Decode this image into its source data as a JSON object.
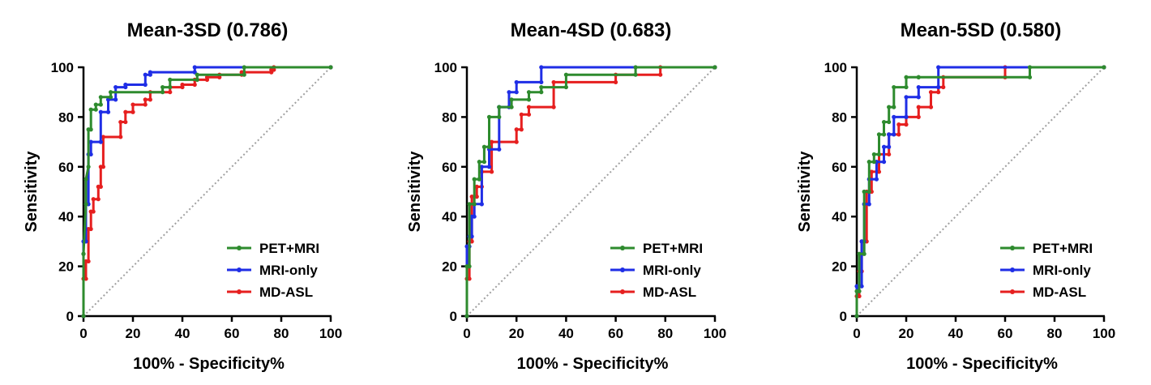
{
  "chart_data": [
    {
      "type": "line",
      "title": "Mean-3SD (0.786)",
      "xlabel": "100%  - Specificity%",
      "ylabel": "Sensitivity",
      "xlim": [
        0,
        100
      ],
      "ylim": [
        0,
        100
      ],
      "xticks": [
        "0",
        "20",
        "40",
        "60",
        "80",
        "100"
      ],
      "yticks": [
        "0",
        "20",
        "40",
        "60",
        "80",
        "100"
      ],
      "legend_position": "bottom-right",
      "series": [
        {
          "name": "PET+MRI",
          "color": "#2e8b2e",
          "x": [
            0,
            0,
            0,
            1,
            1,
            2,
            2,
            3,
            3,
            5,
            5,
            7,
            7,
            11,
            11,
            32,
            32,
            35,
            35,
            46,
            46,
            65,
            65,
            100
          ],
          "y": [
            0,
            25,
            25,
            45,
            55,
            60,
            75,
            75,
            83,
            83,
            85,
            85,
            88,
            88,
            90,
            90,
            92,
            92,
            95,
            95,
            97,
            97,
            100,
            100
          ]
        },
        {
          "name": "MRI-only",
          "color": "#1f2ee6",
          "x": [
            0,
            0,
            1,
            1,
            2,
            2,
            3,
            3,
            7,
            7,
            10,
            10,
            13,
            13,
            17,
            17,
            25,
            25,
            27,
            27,
            45,
            45,
            100
          ],
          "y": [
            0,
            30,
            30,
            45,
            45,
            65,
            65,
            70,
            70,
            82,
            82,
            87,
            87,
            92,
            92,
            93,
            93,
            97,
            97,
            98,
            98,
            100,
            100
          ]
        },
        {
          "name": "MD-ASL",
          "color": "#e61f1f",
          "x": [
            0,
            0,
            1,
            1,
            2,
            2,
            3,
            3,
            4,
            4,
            6,
            6,
            7,
            7,
            8,
            8,
            15,
            15,
            17,
            17,
            20,
            20,
            25,
            25,
            27,
            27,
            35,
            35,
            40,
            40,
            45,
            45,
            50,
            50,
            55,
            55,
            64,
            64,
            76,
            76,
            77,
            77,
            100
          ],
          "y": [
            0,
            15,
            15,
            22,
            22,
            35,
            35,
            42,
            42,
            47,
            47,
            52,
            52,
            60,
            60,
            72,
            72,
            78,
            78,
            82,
            82,
            85,
            85,
            87,
            87,
            90,
            90,
            92,
            92,
            93,
            93,
            95,
            95,
            96,
            96,
            97,
            97,
            98,
            98,
            99,
            99,
            100,
            100
          ]
        }
      ]
    },
    {
      "type": "line",
      "title": "Mean-4SD (0.683)",
      "xlabel": "100%  - Specificity%",
      "ylabel": "Sensitivity",
      "xlim": [
        0,
        100
      ],
      "ylim": [
        0,
        100
      ],
      "xticks": [
        "0",
        "20",
        "40",
        "60",
        "80",
        "100"
      ],
      "yticks": [
        "0",
        "20",
        "40",
        "60",
        "80",
        "100"
      ],
      "legend_position": "bottom-right",
      "series": [
        {
          "name": "PET+MRI",
          "color": "#2e8b2e",
          "x": [
            0,
            0,
            1,
            1,
            3,
            3,
            5,
            5,
            7,
            7,
            9,
            9,
            13,
            13,
            18,
            18,
            25,
            25,
            30,
            30,
            40,
            40,
            68,
            68,
            100
          ],
          "y": [
            0,
            20,
            20,
            45,
            45,
            55,
            55,
            62,
            62,
            68,
            68,
            80,
            80,
            84,
            84,
            87,
            87,
            90,
            90,
            92,
            92,
            97,
            97,
            100,
            100
          ]
        },
        {
          "name": "MRI-only",
          "color": "#1f2ee6",
          "x": [
            0,
            0,
            1,
            1,
            2,
            2,
            3,
            3,
            6,
            6,
            9,
            9,
            13,
            13,
            17,
            17,
            20,
            20,
            30,
            30,
            100
          ],
          "y": [
            0,
            28,
            28,
            32,
            32,
            40,
            40,
            45,
            45,
            60,
            60,
            67,
            67,
            84,
            84,
            90,
            90,
            94,
            94,
            100,
            100
          ]
        },
        {
          "name": "MD-ASL",
          "color": "#e61f1f",
          "x": [
            0,
            0,
            1,
            1,
            2,
            2,
            4,
            4,
            6,
            6,
            10,
            10,
            20,
            20,
            22,
            22,
            25,
            25,
            35,
            35,
            60,
            60,
            78,
            78,
            100
          ],
          "y": [
            0,
            15,
            15,
            30,
            30,
            48,
            48,
            52,
            52,
            58,
            58,
            70,
            70,
            75,
            75,
            81,
            81,
            84,
            84,
            94,
            94,
            97,
            97,
            100,
            100
          ]
        }
      ]
    },
    {
      "type": "line",
      "title": "Mean-5SD (0.580)",
      "xlabel": "100%  - Specificity%",
      "ylabel": "Sensitivity",
      "xlim": [
        0,
        100
      ],
      "ylim": [
        0,
        100
      ],
      "xticks": [
        "0",
        "20",
        "40",
        "60",
        "80",
        "100"
      ],
      "yticks": [
        "0",
        "20",
        "40",
        "60",
        "80",
        "100"
      ],
      "legend_position": "bottom-right",
      "series": [
        {
          "name": "PET+MRI",
          "color": "#2e8b2e",
          "x": [
            0,
            0,
            1,
            1,
            3,
            3,
            5,
            5,
            7,
            7,
            9,
            9,
            11,
            11,
            13,
            13,
            15,
            15,
            20,
            20,
            25,
            25,
            70,
            70,
            100
          ],
          "y": [
            0,
            10,
            10,
            25,
            25,
            50,
            50,
            62,
            62,
            65,
            65,
            73,
            73,
            78,
            78,
            84,
            84,
            92,
            92,
            96,
            96,
            96,
            96,
            100,
            100
          ]
        },
        {
          "name": "MRI-only",
          "color": "#1f2ee6",
          "x": [
            0,
            0,
            2,
            2,
            3,
            3,
            5,
            5,
            8,
            8,
            11,
            11,
            13,
            13,
            15,
            15,
            20,
            20,
            25,
            25,
            33,
            33,
            100
          ],
          "y": [
            0,
            12,
            12,
            30,
            30,
            45,
            45,
            55,
            55,
            62,
            62,
            68,
            68,
            73,
            73,
            80,
            80,
            88,
            88,
            92,
            92,
            100,
            100
          ]
        },
        {
          "name": "MD-ASL",
          "color": "#e61f1f",
          "x": [
            0,
            0,
            1,
            1,
            2,
            2,
            4,
            4,
            6,
            6,
            9,
            9,
            13,
            13,
            17,
            17,
            20,
            20,
            25,
            25,
            30,
            30,
            33,
            33,
            35,
            35,
            60,
            60,
            100
          ],
          "y": [
            0,
            8,
            8,
            18,
            18,
            30,
            30,
            50,
            50,
            58,
            58,
            65,
            65,
            73,
            73,
            77,
            77,
            80,
            80,
            84,
            84,
            90,
            90,
            92,
            92,
            96,
            96,
            100,
            100
          ]
        }
      ]
    }
  ]
}
